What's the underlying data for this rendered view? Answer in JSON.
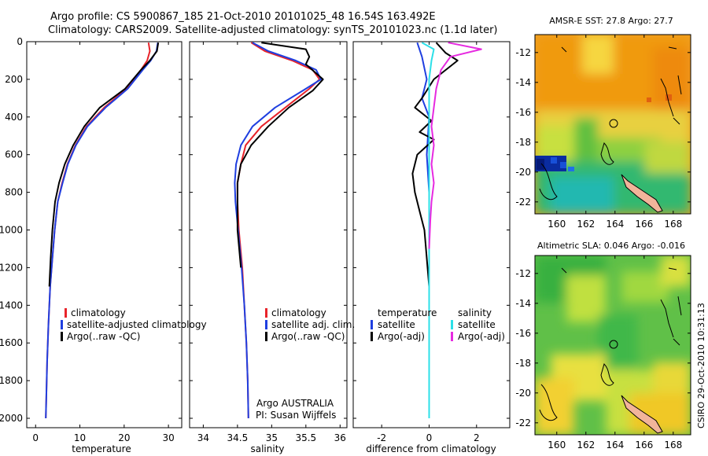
{
  "title": {
    "line1": "Argo profile: CS 5900867_185 21-Oct-2010 20101025_48 16.54S 163.492E",
    "line2": "Climatology: CARS2009. Satellite-adjusted climatology: synTS_20101023.nc (1.1d later)"
  },
  "side_label": "CSIRO 29-Oct-2010 10:31:13",
  "chart_data": [
    {
      "id": "temperature",
      "type": "line",
      "xlabel": "temperature",
      "ylabel": "",
      "xlim": [
        -2,
        33
      ],
      "ylim": [
        2050,
        0
      ],
      "xticks": [
        0,
        10,
        20,
        30
      ],
      "xtick_labels": [
        "0",
        "10",
        "20",
        "30"
      ],
      "yticks": [
        0,
        200,
        400,
        600,
        800,
        1000,
        1200,
        1400,
        1600,
        1800,
        2000
      ],
      "ytick_labels": [
        "0",
        "200",
        "400",
        "600",
        "800",
        "1000",
        "1200",
        "1400",
        "1600",
        "1800",
        "2000"
      ],
      "legend": [
        "climatology",
        "satellite-adjusted climatology",
        "Argo(..raw -QC)"
      ],
      "series": [
        {
          "name": "climatology",
          "color": "#e8232a",
          "x": [
            25.5,
            25.8,
            25.2,
            23.8,
            20.5,
            15.5,
            11.5,
            9.0,
            7.2,
            6.0,
            5.0,
            4.3,
            3.8,
            3.3,
            2.9,
            2.6,
            2.4,
            2.3
          ],
          "y": [
            5,
            50,
            100,
            150,
            250,
            350,
            450,
            550,
            650,
            750,
            850,
            1000,
            1150,
            1300,
            1500,
            1700,
            1900,
            2000
          ]
        },
        {
          "name": "satellite-adjusted climatology",
          "color": "#1f3fe0",
          "x": [
            27.6,
            27.3,
            26.0,
            24.2,
            20.8,
            15.8,
            11.7,
            9.1,
            7.3,
            6.1,
            5.0,
            4.3,
            3.8,
            3.3,
            2.9,
            2.6,
            2.4,
            2.3
          ],
          "y": [
            5,
            50,
            100,
            150,
            250,
            350,
            450,
            550,
            650,
            750,
            850,
            1000,
            1150,
            1300,
            1500,
            1700,
            1900,
            2000
          ]
        },
        {
          "name": "Argo(..raw -QC)",
          "color": "#000000",
          "x": [
            27.7,
            27.4,
            25.8,
            23.8,
            20.2,
            14.5,
            11.0,
            8.5,
            6.6,
            5.3,
            4.4,
            3.8,
            3.4,
            3.1
          ],
          "y": [
            5,
            50,
            100,
            150,
            250,
            350,
            450,
            550,
            650,
            750,
            850,
            1000,
            1150,
            1300
          ]
        }
      ]
    },
    {
      "id": "salinity",
      "type": "line",
      "xlabel": "salinity",
      "ylabel": "",
      "xlim": [
        33.8,
        36.1
      ],
      "ylim": [
        2050,
        0
      ],
      "xticks": [
        34,
        34.5,
        35,
        35.5,
        36
      ],
      "xtick_labels": [
        "34",
        "34.5",
        "35",
        "35.5",
        "36"
      ],
      "legend": [
        "climatology",
        "satellite adj. clim.",
        "Argo(..raw -QC)"
      ],
      "annotation": [
        "Argo AUSTRALIA",
        "PI: Susan Wijffels"
      ],
      "series": [
        {
          "name": "climatology",
          "color": "#e8232a",
          "x": [
            34.7,
            34.9,
            35.3,
            35.6,
            35.7,
            35.55,
            35.2,
            34.85,
            34.62,
            34.55,
            34.5,
            34.5,
            34.52,
            34.57,
            34.6,
            34.63,
            34.65,
            34.66
          ],
          "y": [
            5,
            50,
            100,
            150,
            200,
            250,
            350,
            450,
            550,
            650,
            750,
            850,
            1000,
            1200,
            1400,
            1600,
            1800,
            2000
          ]
        },
        {
          "name": "satellite adj. clim.",
          "color": "#1f3fe0",
          "x": [
            34.72,
            34.95,
            35.35,
            35.65,
            35.72,
            35.5,
            35.05,
            34.72,
            34.55,
            34.48,
            34.46,
            34.47,
            34.51,
            34.56,
            34.6,
            34.63,
            34.65,
            34.66
          ],
          "y": [
            5,
            50,
            100,
            150,
            200,
            250,
            350,
            450,
            550,
            650,
            750,
            850,
            1000,
            1200,
            1400,
            1600,
            1800,
            2000
          ]
        },
        {
          "name": "Argo(..raw -QC)",
          "color": "#000000",
          "x": [
            34.85,
            35.5,
            35.55,
            35.5,
            35.75,
            35.6,
            35.25,
            34.95,
            34.7,
            34.55,
            34.5,
            34.5,
            34.5,
            34.55
          ],
          "y": [
            5,
            40,
            80,
            120,
            200,
            260,
            350,
            450,
            550,
            650,
            750,
            850,
            1000,
            1200
          ]
        }
      ]
    },
    {
      "id": "difference",
      "type": "line",
      "xlabel": "difference from climatology",
      "ylabel": "",
      "xlim": [
        -3.2,
        3.4
      ],
      "ylim": [
        2050,
        0
      ],
      "xticks": [
        -2,
        0,
        2
      ],
      "xtick_labels": [
        "-2",
        "0",
        "2"
      ],
      "legend_left": [
        "temperature",
        "satellite",
        "Argo(-adj)"
      ],
      "legend_right": [
        "salinity",
        "satellite",
        "Argo(-adj)"
      ],
      "series": [
        {
          "name": "temperature satellite",
          "color": "#1f3fe0",
          "x": [
            -0.5,
            -0.3,
            -0.1,
            -0.3,
            0,
            -0.1,
            0,
            0,
            0,
            0,
            0
          ],
          "y": [
            5,
            80,
            200,
            300,
            400,
            600,
            800,
            1000,
            1400,
            1800,
            2000
          ]
        },
        {
          "name": "temperature Argo(-adj)",
          "color": "#000000",
          "x": [
            0.3,
            0.7,
            1.2,
            0.2,
            -0.3,
            -0.6,
            0.1,
            -0.4,
            0.2,
            -0.5,
            -0.7,
            -0.6,
            -0.4,
            -0.2,
            0
          ],
          "y": [
            5,
            60,
            100,
            200,
            300,
            350,
            420,
            480,
            520,
            600,
            700,
            800,
            900,
            1000,
            1300
          ]
        },
        {
          "name": "salinity satellite",
          "color": "#2ce0e8",
          "x": [
            -0.3,
            0.2,
            0.1,
            0,
            0,
            0,
            0,
            0,
            0
          ],
          "y": [
            5,
            40,
            100,
            200,
            400,
            800,
            1200,
            1600,
            2000
          ]
        },
        {
          "name": "salinity Argo(-adj)",
          "color": "#e62ae0",
          "x": [
            0.8,
            2.2,
            0.9,
            0.5,
            0.3,
            0.2,
            0.1,
            0.2,
            0.1,
            0.2,
            0.1,
            0.05,
            0
          ],
          "y": [
            5,
            40,
            80,
            150,
            250,
            350,
            450,
            550,
            650,
            750,
            850,
            950,
            1100
          ]
        }
      ]
    },
    {
      "id": "sst-map",
      "type": "heatmap",
      "title": "AMSR-E SST: 27.8 Argo: 27.7",
      "xlim": [
        158.5,
        169.2
      ],
      "ylim": [
        -22.8,
        -10.8
      ],
      "xticks": [
        160,
        162,
        164,
        166,
        168
      ],
      "xtick_labels": [
        "160",
        "162",
        "164",
        "166",
        "168"
      ],
      "yticks": [
        -12,
        -14,
        -16,
        -18,
        -20,
        -22
      ],
      "ytick_labels": [
        "-12",
        "-14",
        "-16",
        "-18",
        "-20",
        "-22"
      ],
      "argo_position": {
        "lon": 163.492,
        "lat": -16.54
      }
    },
    {
      "id": "sla-map",
      "type": "heatmap",
      "title": "Altimetric SLA: 0.046 Argo: -0.016",
      "xlim": [
        158.5,
        169.2
      ],
      "ylim": [
        -22.8,
        -10.8
      ],
      "xticks": [
        160,
        162,
        164,
        166,
        168
      ],
      "xtick_labels": [
        "160",
        "162",
        "164",
        "166",
        "168"
      ],
      "yticks": [
        -12,
        -14,
        -16,
        -18,
        -20,
        -22
      ],
      "ytick_labels": [
        "-12",
        "-14",
        "-16",
        "-18",
        "-20",
        "-22"
      ],
      "argo_position": {
        "lon": 163.492,
        "lat": -16.54
      }
    }
  ]
}
